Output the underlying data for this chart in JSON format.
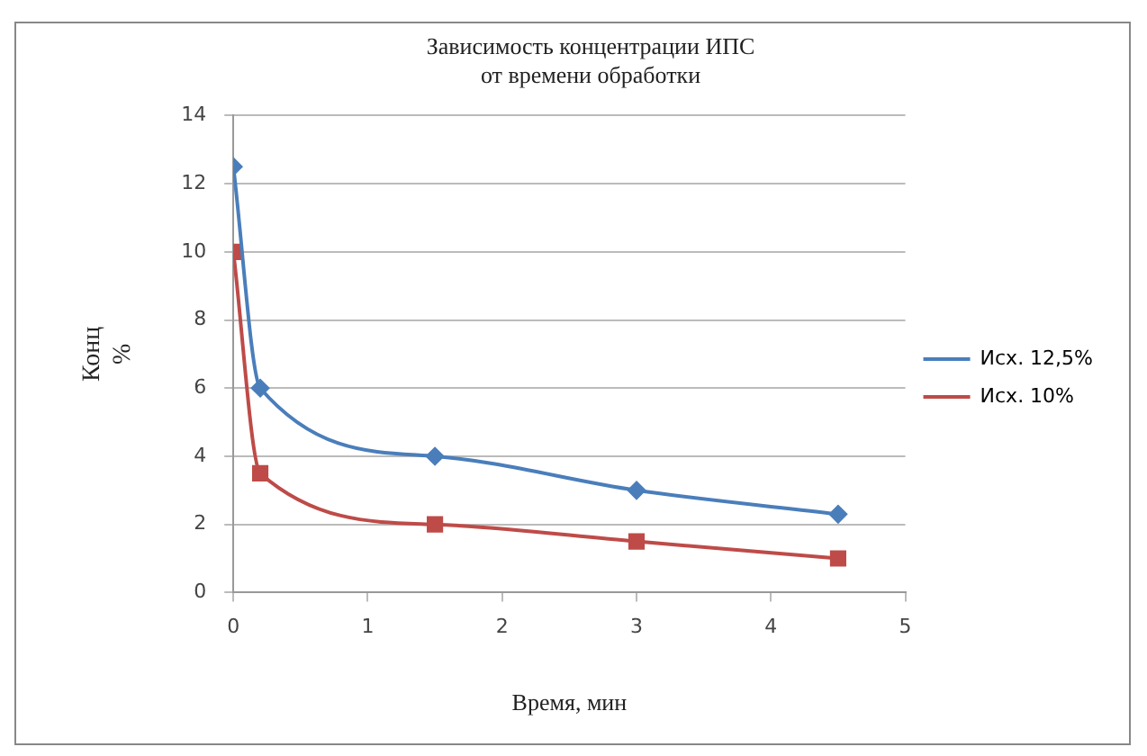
{
  "chart_data": {
    "type": "line",
    "title": "Зависимость концентрации ИПС\nот времени обработки",
    "xlabel": "Время, мин",
    "ylabel": "Конц\n%",
    "x": [
      0,
      0.2,
      1.5,
      3,
      4.5
    ],
    "series": [
      {
        "name": "Исх. 12,5%",
        "color": "#4a7ebb",
        "marker": "diamond",
        "values": [
          12.5,
          6,
          4,
          3,
          2.3
        ]
      },
      {
        "name": "Исх. 10%",
        "color": "#be4b48",
        "marker": "square",
        "values": [
          10,
          3.5,
          2,
          1.5,
          1
        ]
      }
    ],
    "xlim": [
      0,
      5
    ],
    "xticks": [
      0,
      1,
      2,
      3,
      4,
      5
    ],
    "ylim": [
      0,
      14
    ],
    "yticks": [
      0,
      2,
      4,
      6,
      8,
      10,
      12,
      14
    ],
    "grid": "y",
    "legend": "right",
    "line_style": "solid"
  }
}
